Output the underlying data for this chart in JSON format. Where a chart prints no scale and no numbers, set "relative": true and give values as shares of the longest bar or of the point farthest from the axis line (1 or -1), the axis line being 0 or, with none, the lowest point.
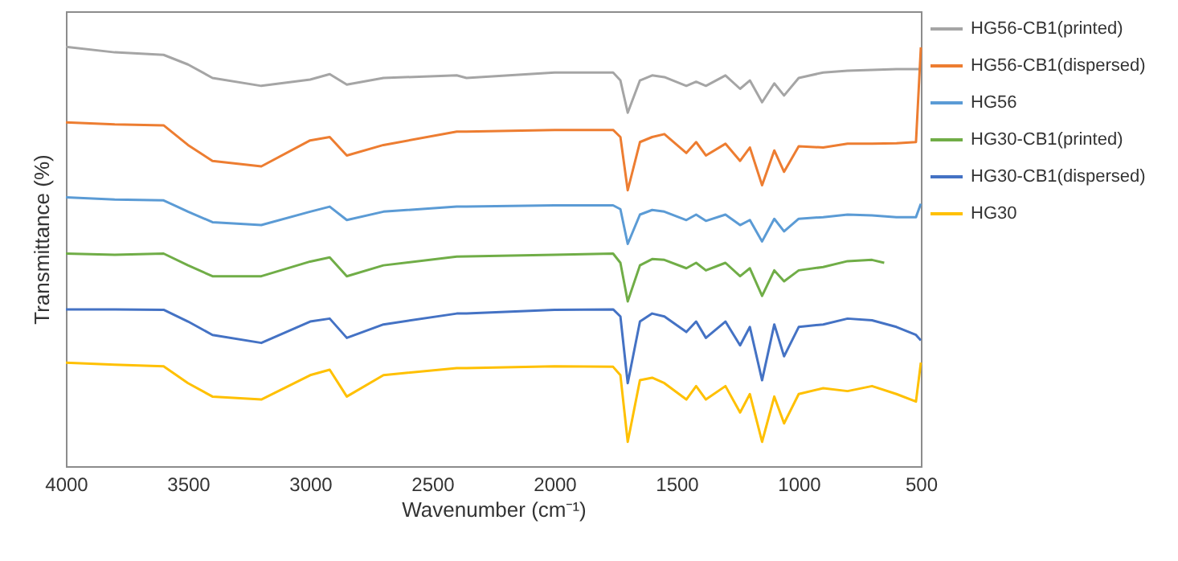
{
  "chart_data": {
    "type": "line",
    "relative": true,
    "xlabel": "Wavenumber (cm⁻¹)",
    "ylabel": "Transmittance (%)",
    "xlim": [
      4000,
      500
    ],
    "xticks": [
      4000,
      3500,
      3000,
      2500,
      2000,
      1500,
      1000,
      500
    ],
    "grid": false,
    "legend": "right",
    "marker": "none",
    "line_style": "solid",
    "x": [
      4000,
      3800,
      3600,
      3500,
      3400,
      3200,
      3000,
      2920,
      2850,
      2700,
      2400,
      2360,
      2000,
      1760,
      1730,
      1700,
      1650,
      1600,
      1550,
      1460,
      1420,
      1380,
      1300,
      1240,
      1200,
      1150,
      1100,
      1060,
      1000,
      900,
      800,
      700,
      600,
      520,
      500
    ],
    "series": [
      {
        "name": "HG56-CB1(printed)",
        "color": "#a5a5a5",
        "values": [
          1.0,
          0.987,
          0.981,
          0.958,
          0.926,
          0.907,
          0.922,
          0.935,
          0.91,
          0.926,
          0.932,
          0.926,
          0.939,
          0.939,
          0.92,
          0.843,
          0.92,
          0.932,
          0.928,
          0.907,
          0.917,
          0.907,
          0.932,
          0.9,
          0.92,
          0.868,
          0.913,
          0.884,
          0.926,
          0.939,
          0.943,
          0.945,
          0.947,
          0.947,
          0.947
        ]
      },
      {
        "name": "HG56-CB1(dispersed)",
        "color": "#ed7d31",
        "values": [
          0.82,
          0.815,
          0.813,
          0.766,
          0.728,
          0.715,
          0.777,
          0.785,
          0.741,
          0.766,
          0.798,
          0.798,
          0.802,
          0.802,
          0.785,
          0.658,
          0.773,
          0.785,
          0.792,
          0.747,
          0.773,
          0.741,
          0.769,
          0.728,
          0.76,
          0.67,
          0.753,
          0.702,
          0.763,
          0.76,
          0.769,
          0.769,
          0.77,
          0.773,
          0.999
        ]
      },
      {
        "name": "HG56",
        "color": "#5b9bd5",
        "values": [
          0.641,
          0.636,
          0.634,
          0.607,
          0.582,
          0.575,
          0.607,
          0.619,
          0.587,
          0.607,
          0.619,
          0.619,
          0.622,
          0.622,
          0.613,
          0.53,
          0.6,
          0.611,
          0.607,
          0.587,
          0.6,
          0.585,
          0.6,
          0.575,
          0.587,
          0.536,
          0.59,
          0.56,
          0.59,
          0.594,
          0.6,
          0.598,
          0.594,
          0.594,
          0.626
        ]
      },
      {
        "name": "HG30-CB1(printed)",
        "color": "#70ad47",
        "x": [
          4000,
          3800,
          3600,
          3500,
          3400,
          3200,
          3000,
          2920,
          2850,
          2700,
          2400,
          2000,
          1760,
          1730,
          1700,
          1650,
          1600,
          1550,
          1460,
          1420,
          1380,
          1300,
          1240,
          1200,
          1150,
          1100,
          1060,
          1000,
          900,
          800,
          700,
          650
        ],
        "values": [
          0.507,
          0.504,
          0.507,
          0.479,
          0.453,
          0.453,
          0.488,
          0.498,
          0.453,
          0.479,
          0.5,
          0.504,
          0.507,
          0.485,
          0.393,
          0.479,
          0.494,
          0.492,
          0.472,
          0.485,
          0.467,
          0.485,
          0.453,
          0.472,
          0.406,
          0.467,
          0.441,
          0.467,
          0.475,
          0.489,
          0.492,
          0.485
        ]
      },
      {
        "name": "HG30-CB1(dispersed)",
        "color": "#4472c4",
        "values": [
          0.374,
          0.374,
          0.373,
          0.345,
          0.313,
          0.294,
          0.345,
          0.352,
          0.306,
          0.338,
          0.364,
          0.364,
          0.373,
          0.374,
          0.357,
          0.198,
          0.345,
          0.364,
          0.357,
          0.32,
          0.345,
          0.306,
          0.345,
          0.288,
          0.332,
          0.205,
          0.338,
          0.262,
          0.332,
          0.338,
          0.352,
          0.348,
          0.332,
          0.313,
          0.3
        ]
      },
      {
        "name": "HG30",
        "color": "#ffc000",
        "values": [
          0.247,
          0.242,
          0.238,
          0.198,
          0.166,
          0.159,
          0.217,
          0.23,
          0.166,
          0.217,
          0.234,
          0.234,
          0.238,
          0.237,
          0.217,
          0.058,
          0.205,
          0.211,
          0.198,
          0.159,
          0.191,
          0.159,
          0.191,
          0.128,
          0.172,
          0.058,
          0.166,
          0.102,
          0.172,
          0.186,
          0.179,
          0.191,
          0.172,
          0.154,
          0.247
        ]
      }
    ]
  }
}
